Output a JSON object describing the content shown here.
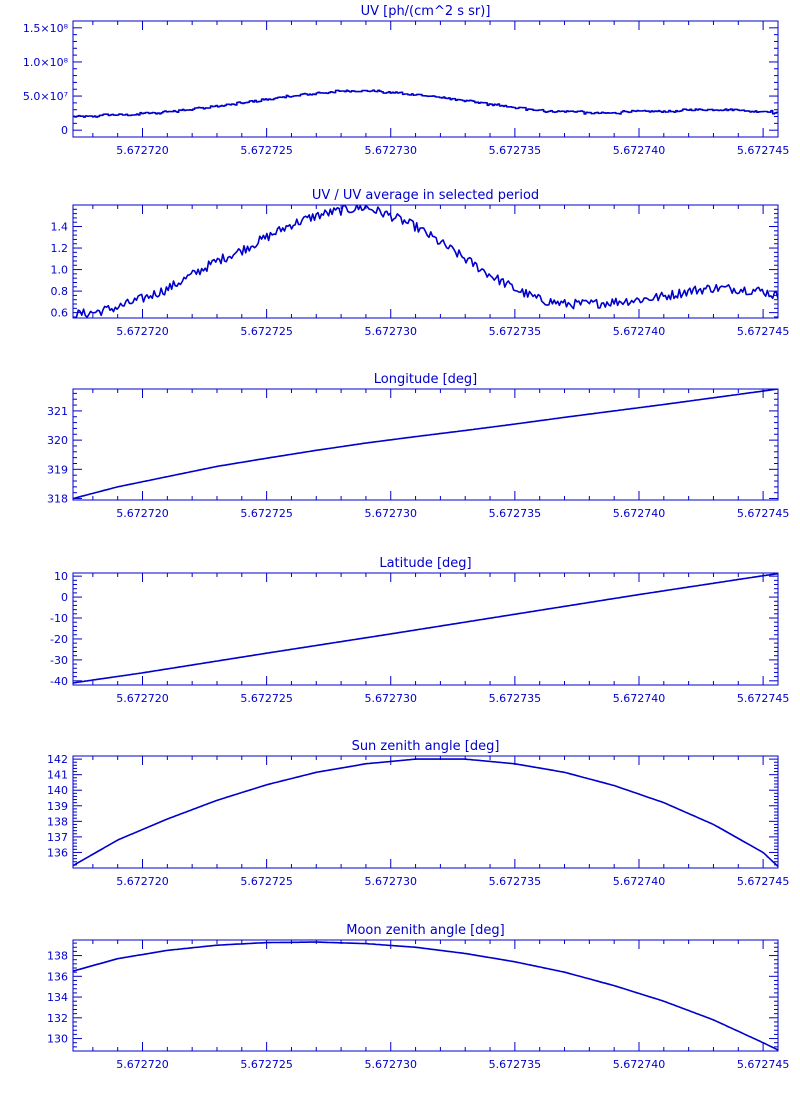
{
  "chart_data": [
    {
      "type": "line",
      "title": "UV [ph/(cm^2 s sr)]",
      "x_ticks": [
        "5.672720",
        "5.672725",
        "5.672730",
        "5.672735",
        "5.672740",
        "5.672745"
      ],
      "x_tick_values": [
        5.67272,
        5.672725,
        5.67273,
        5.672735,
        5.67274,
        5.672745
      ],
      "xlim": [
        5.6727172,
        5.6727456
      ],
      "ylim": [
        -10000000,
        160000000
      ],
      "y_ticks": [
        {
          "label": "1.5×10⁸",
          "value": 150000000
        },
        {
          "label": "1.0×10⁸",
          "value": 100000000
        },
        {
          "label": "5.0×10⁷",
          "value": 50000000
        },
        {
          "label": "0",
          "value": 0
        }
      ],
      "series": [
        {
          "style": "step",
          "x": [
            5.6727172,
            5.672718,
            5.672719,
            5.67272,
            5.672721,
            5.672722,
            5.672723,
            5.672724,
            5.672725,
            5.672726,
            5.672727,
            5.672728,
            5.672729,
            5.67273,
            5.672731,
            5.672732,
            5.672733,
            5.672734,
            5.672735,
            5.672736,
            5.672737,
            5.672738,
            5.672739,
            5.67274,
            5.672741,
            5.672742,
            5.672743,
            5.672744,
            5.672745,
            5.6727456
          ],
          "values": [
            19000000,
            21000000,
            22000000,
            24000000,
            27000000,
            31000000,
            35000000,
            40000000,
            45000000,
            50000000,
            54000000,
            57000000,
            58000000,
            55000000,
            52000000,
            48000000,
            43000000,
            38000000,
            33000000,
            29000000,
            27000000,
            26000000,
            26000000,
            27000000,
            28000000,
            29000000,
            29000000,
            29000000,
            28000000,
            25000000
          ]
        }
      ]
    },
    {
      "type": "line",
      "title": "UV / UV average in selected period",
      "x_ticks": [
        "5.672720",
        "5.672725",
        "5.672730",
        "5.672735",
        "5.672740",
        "5.672745"
      ],
      "x_tick_values": [
        5.67272,
        5.672725,
        5.67273,
        5.672735,
        5.67274,
        5.672745
      ],
      "xlim": [
        5.6727172,
        5.6727456
      ],
      "ylim": [
        0.55,
        1.6
      ],
      "y_ticks": [
        {
          "label": "1.4",
          "value": 1.4
        },
        {
          "label": "1.2",
          "value": 1.2
        },
        {
          "label": "1.0",
          "value": 1.0
        },
        {
          "label": "0.8",
          "value": 0.8
        },
        {
          "label": "0.6",
          "value": 0.6
        }
      ],
      "series": [
        {
          "style": "line",
          "x": [
            5.6727172,
            5.672718,
            5.672719,
            5.67272,
            5.672721,
            5.672722,
            5.672723,
            5.672724,
            5.672725,
            5.672726,
            5.672727,
            5.672728,
            5.672729,
            5.67273,
            5.672731,
            5.672732,
            5.672733,
            5.672734,
            5.672735,
            5.672736,
            5.672737,
            5.672738,
            5.672739,
            5.67274,
            5.672741,
            5.672742,
            5.672743,
            5.672744,
            5.672745,
            5.6727456
          ],
          "values": [
            0.58,
            0.6,
            0.65,
            0.73,
            0.82,
            0.95,
            1.08,
            1.18,
            1.3,
            1.42,
            1.5,
            1.55,
            1.58,
            1.5,
            1.4,
            1.25,
            1.1,
            0.95,
            0.82,
            0.72,
            0.68,
            0.68,
            0.7,
            0.72,
            0.75,
            0.8,
            0.83,
            0.82,
            0.8,
            0.75
          ],
          "noise_amplitude": 0.045
        }
      ]
    },
    {
      "type": "line",
      "title": "Longitude [deg]",
      "x_ticks": [
        "5.672720",
        "5.672725",
        "5.672730",
        "5.672735",
        "5.672740",
        "5.672745"
      ],
      "x_tick_values": [
        5.67272,
        5.672725,
        5.67273,
        5.672735,
        5.67274,
        5.672745
      ],
      "xlim": [
        5.6727172,
        5.6727456
      ],
      "ylim": [
        317.95,
        321.75
      ],
      "y_ticks": [
        {
          "label": "321",
          "value": 321
        },
        {
          "label": "320",
          "value": 320
        },
        {
          "label": "319",
          "value": 319
        },
        {
          "label": "318",
          "value": 318
        }
      ],
      "series": [
        {
          "style": "line",
          "x": [
            5.6727172,
            5.672719,
            5.672721,
            5.672723,
            5.672725,
            5.672727,
            5.672729,
            5.672731,
            5.672733,
            5.672735,
            5.672737,
            5.672739,
            5.672741,
            5.672743,
            5.672745,
            5.6727456
          ],
          "values": [
            318.0,
            318.4,
            318.75,
            319.1,
            319.38,
            319.65,
            319.9,
            320.12,
            320.33,
            320.55,
            320.78,
            321.0,
            321.22,
            321.45,
            321.68,
            321.75
          ]
        }
      ]
    },
    {
      "type": "line",
      "title": "Latitude [deg]",
      "x_ticks": [
        "5.672720",
        "5.672725",
        "5.672730",
        "5.672735",
        "5.672740",
        "5.672745"
      ],
      "x_tick_values": [
        5.67272,
        5.672725,
        5.67273,
        5.672735,
        5.67274,
        5.672745
      ],
      "xlim": [
        5.6727172,
        5.6727456
      ],
      "ylim": [
        -42,
        11.5
      ],
      "y_ticks": [
        {
          "label": "10",
          "value": 10
        },
        {
          "label": "0",
          "value": 0
        },
        {
          "label": "-10",
          "value": -10
        },
        {
          "label": "-20",
          "value": -20
        },
        {
          "label": "-30",
          "value": -30
        },
        {
          "label": "-40",
          "value": -40
        }
      ],
      "series": [
        {
          "style": "line",
          "x": [
            5.6727172,
            5.67272,
            5.672725,
            5.67273,
            5.672735,
            5.67274,
            5.672745,
            5.6727456
          ],
          "values": [
            -41,
            -36.2,
            -26.8,
            -17.6,
            -8.2,
            1.2,
            10.2,
            11.2
          ]
        }
      ]
    },
    {
      "type": "line",
      "title": "Sun zenith angle [deg]",
      "x_ticks": [
        "5.672720",
        "5.672725",
        "5.672730",
        "5.672735",
        "5.672740",
        "5.672745"
      ],
      "x_tick_values": [
        5.67272,
        5.672725,
        5.67273,
        5.672735,
        5.67274,
        5.672745
      ],
      "xlim": [
        5.6727172,
        5.6727456
      ],
      "ylim": [
        135,
        142.2
      ],
      "y_ticks": [
        {
          "label": "142",
          "value": 142
        },
        {
          "label": "141",
          "value": 141
        },
        {
          "label": "140",
          "value": 140
        },
        {
          "label": "139",
          "value": 139
        },
        {
          "label": "138",
          "value": 138
        },
        {
          "label": "137",
          "value": 137
        },
        {
          "label": "136",
          "value": 136
        }
      ],
      "series": [
        {
          "style": "line",
          "x": [
            5.6727172,
            5.672719,
            5.672721,
            5.672723,
            5.672725,
            5.672727,
            5.672729,
            5.672731,
            5.672733,
            5.672735,
            5.672737,
            5.672739,
            5.672741,
            5.672743,
            5.672745,
            5.6727456
          ],
          "values": [
            135.15,
            136.8,
            138.15,
            139.35,
            140.35,
            141.15,
            141.7,
            142.0,
            142.0,
            141.7,
            141.15,
            140.3,
            139.2,
            137.8,
            136.0,
            135.1
          ]
        }
      ]
    },
    {
      "type": "line",
      "title": "Moon zenith angle [deg]",
      "x_ticks": [
        "5.672720",
        "5.672725",
        "5.672730",
        "5.672735",
        "5.672740",
        "5.672745"
      ],
      "x_tick_values": [
        5.67272,
        5.672725,
        5.67273,
        5.672735,
        5.67274,
        5.672745
      ],
      "xlim": [
        5.6727172,
        5.6727456
      ],
      "ylim": [
        128.8,
        139.5
      ],
      "y_ticks": [
        {
          "label": "138",
          "value": 138
        },
        {
          "label": "136",
          "value": 136
        },
        {
          "label": "134",
          "value": 134
        },
        {
          "label": "132",
          "value": 132
        },
        {
          "label": "130",
          "value": 130
        }
      ],
      "series": [
        {
          "style": "line",
          "x": [
            5.6727172,
            5.672719,
            5.672721,
            5.672723,
            5.672725,
            5.672727,
            5.672729,
            5.672731,
            5.672733,
            5.672735,
            5.672737,
            5.672739,
            5.672741,
            5.672743,
            5.672745,
            5.6727456
          ],
          "values": [
            136.5,
            137.7,
            138.5,
            139.0,
            139.25,
            139.3,
            139.15,
            138.8,
            138.2,
            137.4,
            136.4,
            135.1,
            133.6,
            131.8,
            129.6,
            128.9
          ]
        }
      ]
    }
  ],
  "colors": {
    "line": "#0000cc",
    "background": "#ffffff"
  }
}
